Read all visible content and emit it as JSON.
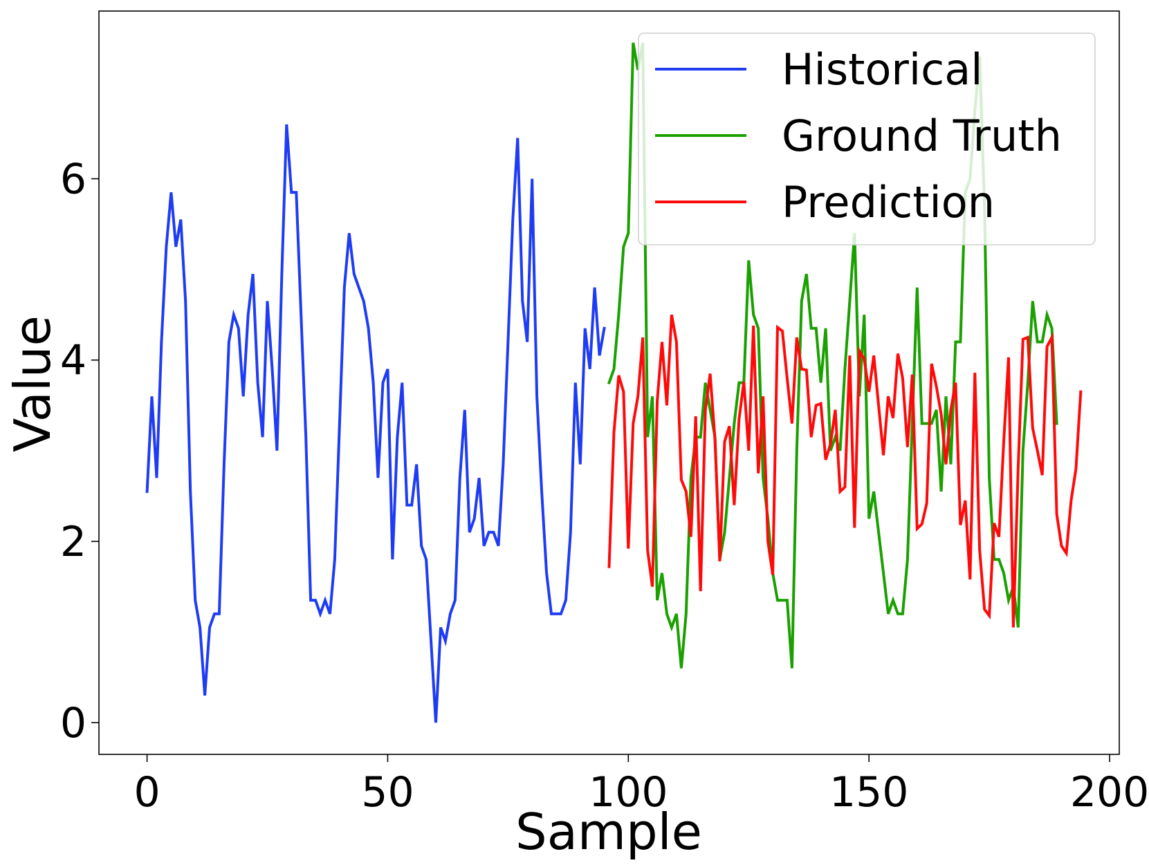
{
  "chart_data": {
    "type": "line",
    "title": "",
    "xlabel": "Sample",
    "ylabel": "Value",
    "xlim": [
      -10,
      202
    ],
    "ylim": [
      -0.35,
      7.85
    ],
    "x_ticks": [
      0,
      50,
      100,
      150,
      200
    ],
    "y_ticks": [
      0,
      2,
      4,
      6
    ],
    "grid": false,
    "legend_position": "top-right",
    "series": [
      {
        "name": "Historical",
        "color": "#1f3cf5",
        "x_start": 0,
        "values": [
          2.55,
          3.6,
          2.7,
          4.2,
          5.25,
          5.85,
          5.25,
          5.55,
          4.65,
          2.55,
          1.35,
          1.05,
          0.3,
          1.05,
          1.2,
          1.2,
          2.85,
          4.2,
          4.5,
          4.35,
          3.6,
          4.5,
          4.95,
          3.75,
          3.15,
          4.65,
          3.9,
          3.0,
          4.95,
          6.6,
          5.85,
          5.85,
          4.5,
          3.15,
          1.35,
          1.35,
          1.2,
          1.35,
          1.2,
          1.8,
          3.3,
          4.8,
          5.4,
          4.95,
          4.8,
          4.65,
          4.35,
          3.75,
          2.7,
          3.75,
          3.9,
          1.8,
          3.15,
          3.75,
          2.4,
          2.4,
          2.85,
          1.95,
          1.8,
          0.9,
          0.0,
          1.05,
          0.9,
          1.2,
          1.35,
          2.7,
          3.45,
          2.1,
          2.25,
          2.7,
          1.95,
          2.1,
          2.1,
          1.95,
          2.85,
          4.2,
          5.55,
          6.45,
          4.65,
          4.2,
          6.0,
          3.6,
          2.55,
          1.65,
          1.2,
          1.2,
          1.2,
          1.35,
          2.1,
          3.75,
          2.85,
          4.35,
          3.9,
          4.8,
          4.05,
          4.35
        ]
      },
      {
        "name": "Ground Truth",
        "color": "#1aa000",
        "x_start": 96,
        "values": [
          3.75,
          3.9,
          4.5,
          5.25,
          5.4,
          7.5,
          7.2,
          7.5,
          3.15,
          3.6,
          1.35,
          1.65,
          1.2,
          1.05,
          1.2,
          0.6,
          1.2,
          2.7,
          3.15,
          3.15,
          3.75,
          3.45,
          3.15,
          1.8,
          2.1,
          2.7,
          3.3,
          3.75,
          3.75,
          5.1,
          4.5,
          4.35,
          2.7,
          2.25,
          1.65,
          1.35,
          1.35,
          1.35,
          0.6,
          3.0,
          4.65,
          4.95,
          4.35,
          4.35,
          3.75,
          4.35,
          3.0,
          3.15,
          3.0,
          3.9,
          4.65,
          5.4,
          3.6,
          4.5,
          2.25,
          2.55,
          2.1,
          1.65,
          1.2,
          1.35,
          1.2,
          1.2,
          1.8,
          3.3,
          4.8,
          3.3,
          3.3,
          3.3,
          3.45,
          2.55,
          3.6,
          2.85,
          4.2,
          4.2,
          5.85,
          6.0,
          6.75,
          7.35,
          5.7,
          2.7,
          1.8,
          1.8,
          1.65,
          1.35,
          1.5,
          1.05,
          3.0,
          3.75,
          4.65,
          4.2,
          4.2,
          4.5,
          4.35,
          3.3
        ]
      },
      {
        "name": "Prediction",
        "color": "#ff0a0a",
        "x_start": 96,
        "values": [
          1.72,
          3.2,
          3.83,
          3.65,
          1.92,
          3.3,
          3.6,
          4.25,
          1.9,
          1.5,
          3.55,
          4.2,
          3.5,
          4.5,
          4.2,
          2.68,
          2.55,
          2.05,
          3.38,
          1.45,
          3.45,
          3.85,
          3.12,
          1.78,
          3.1,
          3.27,
          2.4,
          3.35,
          3.76,
          3.0,
          4.38,
          2.75,
          3.6,
          2.0,
          1.63,
          4.36,
          4.32,
          3.8,
          3.3,
          4.25,
          3.9,
          3.89,
          3.15,
          3.5,
          3.52,
          2.9,
          3.07,
          3.45,
          2.55,
          2.6,
          4.05,
          2.15,
          4.1,
          4.01,
          3.65,
          4.05,
          3.5,
          2.95,
          3.6,
          3.36,
          4.07,
          3.8,
          3.04,
          3.84,
          2.14,
          2.19,
          2.42,
          3.96,
          3.71,
          3.4,
          2.85,
          3.45,
          3.75,
          2.18,
          2.45,
          1.58,
          3.86,
          1.9,
          1.25,
          1.18,
          2.2,
          2.05,
          3.1,
          4.03,
          1.05,
          2.82,
          4.23,
          4.25,
          3.25,
          3.0,
          2.73,
          4.15,
          4.25,
          2.3,
          1.95,
          1.87,
          2.45,
          2.8,
          3.65
        ]
      }
    ]
  }
}
